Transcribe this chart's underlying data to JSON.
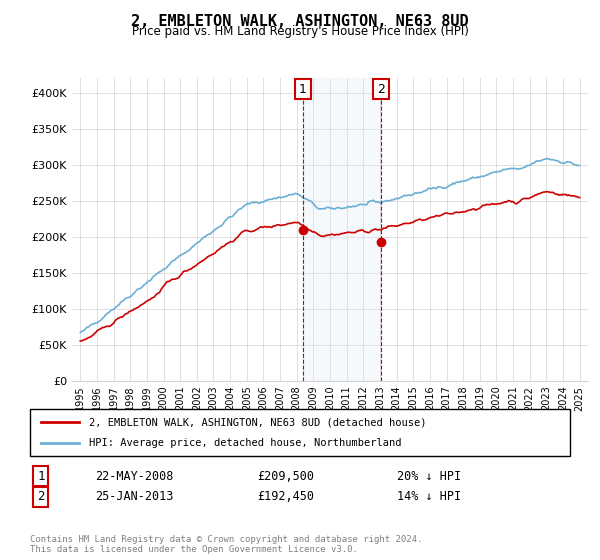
{
  "title": "2, EMBLETON WALK, ASHINGTON, NE63 8UD",
  "subtitle": "Price paid vs. HM Land Registry's House Price Index (HPI)",
  "hpi_color": "#6baed6",
  "price_color": "#cc0000",
  "purchase1_date": "22-MAY-2008",
  "purchase1_price": 209500,
  "purchase1_label": "20% ↓ HPI",
  "purchase2_date": "25-JAN-2013",
  "purchase2_price": 192450,
  "purchase2_label": "14% ↓ HPI",
  "legend_house": "2, EMBLETON WALK, ASHINGTON, NE63 8UD (detached house)",
  "legend_hpi": "HPI: Average price, detached house, Northumberland",
  "footer": "Contains HM Land Registry data © Crown copyright and database right 2024.\nThis data is licensed under the Open Government Licence v3.0.",
  "ylim": [
    0,
    420000
  ],
  "yticks": [
    0,
    50000,
    100000,
    150000,
    200000,
    250000,
    300000,
    350000,
    400000
  ],
  "ytick_labels": [
    "£0",
    "£50K",
    "£100K",
    "£150K",
    "£200K",
    "£250K",
    "£300K",
    "£350K",
    "£400K"
  ],
  "shade_color": "#dce9f5",
  "vline_color": "#cc0000"
}
